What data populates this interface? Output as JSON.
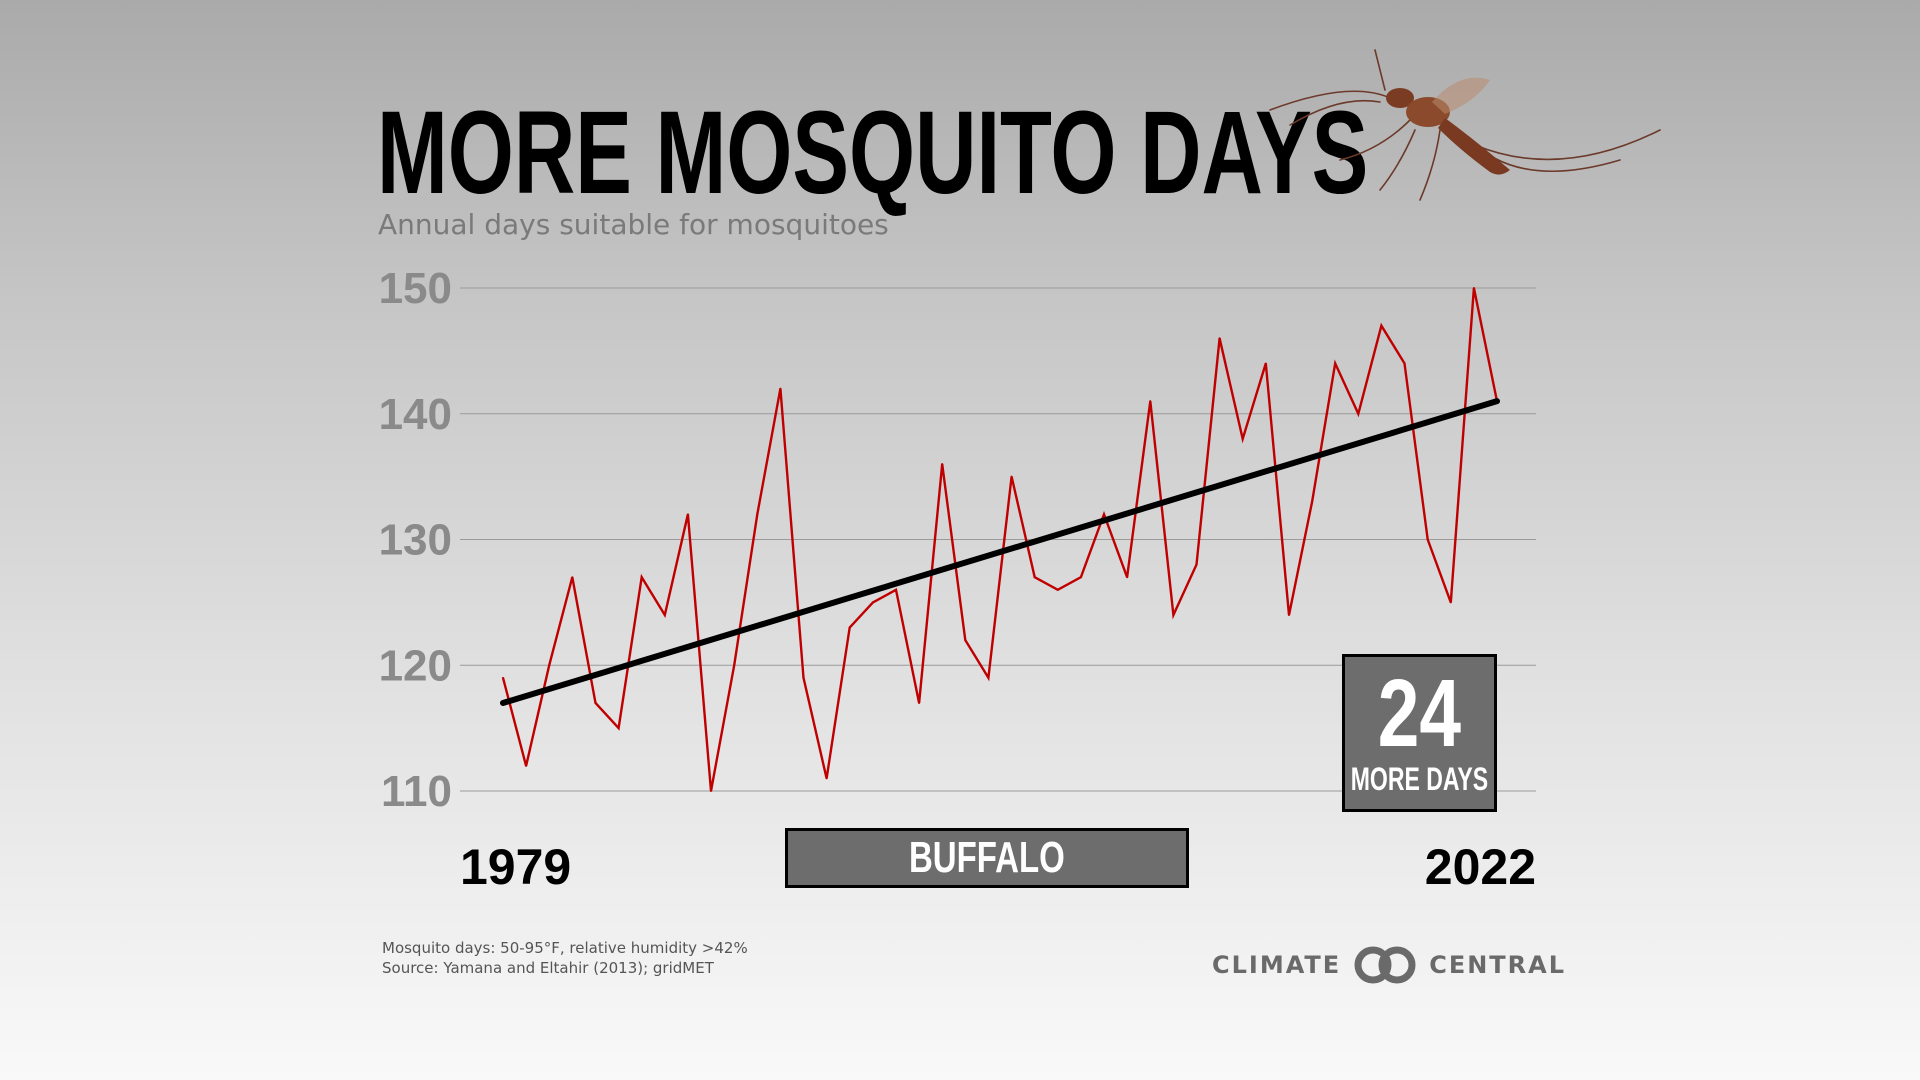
{
  "title": "MORE MOSQUITO DAYS",
  "subtitle": "Annual days suitable for mosquitoes",
  "city": "BUFFALO",
  "callout": {
    "number": "24",
    "text": "MORE DAYS"
  },
  "footnote": {
    "line1": "Mosquito days: 50-95°F, relative humidity >42%",
    "line2": "Source: Yamana and Eltahir (2013); gridMET"
  },
  "logo": {
    "left": "CLIMATE",
    "right": "CENTRAL"
  },
  "colors": {
    "series": "#c00000",
    "trend": "#000000",
    "box": "#6d6d6d",
    "grid": "#9a9a9a",
    "tick": "#8a8a8a"
  },
  "chart_data": {
    "type": "line",
    "title": "MORE MOSQUITO DAYS",
    "subtitle": "Annual days suitable for mosquitoes",
    "xlabel": "",
    "ylabel": "",
    "xlim": [
      1979,
      2022
    ],
    "ylim": [
      110,
      150
    ],
    "yticks": [
      110,
      120,
      130,
      140,
      150
    ],
    "xtick_labels": [
      "1979",
      "2022"
    ],
    "grid": true,
    "x": [
      1979,
      1980,
      1981,
      1982,
      1983,
      1984,
      1985,
      1986,
      1987,
      1988,
      1989,
      1990,
      1991,
      1992,
      1993,
      1994,
      1995,
      1996,
      1997,
      1998,
      1999,
      2000,
      2001,
      2002,
      2003,
      2004,
      2005,
      2006,
      2007,
      2008,
      2009,
      2010,
      2011,
      2012,
      2013,
      2014,
      2015,
      2016,
      2017,
      2018,
      2019,
      2020,
      2021,
      2022
    ],
    "series": [
      {
        "name": "Mosquito days",
        "color": "#c00000",
        "values": [
          119,
          112,
          120,
          127,
          117,
          115,
          127,
          124,
          132,
          110,
          120,
          132,
          142,
          119,
          111,
          123,
          125,
          126,
          117,
          136,
          122,
          119,
          135,
          127,
          126,
          127,
          132,
          127,
          141,
          124,
          128,
          146,
          138,
          144,
          124,
          133,
          144,
          140,
          147,
          144,
          130,
          125,
          150,
          141
        ]
      },
      {
        "name": "Trend",
        "color": "#000000",
        "values_at_ends": [
          117,
          141
        ]
      }
    ],
    "annotations": [
      {
        "label": "24",
        "text": "MORE DAYS"
      },
      {
        "label": "BUFFALO"
      }
    ]
  }
}
